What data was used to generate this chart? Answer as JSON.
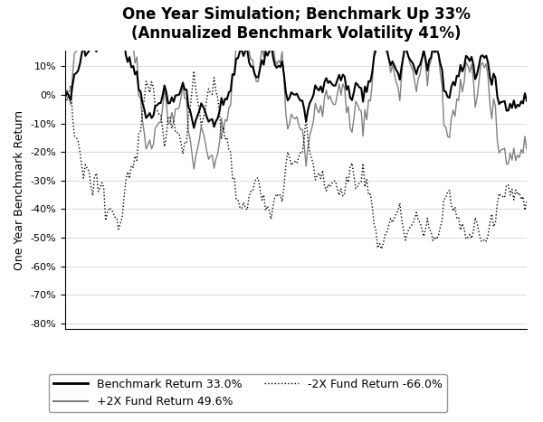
{
  "title_line1": "One Year Simulation; Benchmark Up 33%",
  "title_line2": "(Annualized Benchmark Volatility 41%)",
  "ylabel": "One Year Benchmark Return",
  "ylim": [
    -0.82,
    0.155
  ],
  "yticks": [
    -0.8,
    -0.7,
    -0.6,
    -0.5,
    -0.4,
    -0.3,
    -0.2,
    -0.1,
    0.0,
    0.1,
    0.2,
    0.3,
    0.4,
    0.5,
    0.6,
    0.7,
    0.8,
    0.9,
    1.0,
    1.1,
    1.2,
    1.3,
    1.4
  ],
  "benchmark_color": "#000000",
  "fund2x_color": "#808080",
  "fundm2x_color": "#000000",
  "background_color": "#ffffff",
  "legend_labels": [
    "Benchmark Return 33.0%",
    "+2X Fund Return 49.6%",
    "-2X Fund Return -66.0%"
  ],
  "n_steps": 252,
  "annual_return": 0.33,
  "annual_vol": 0.41,
  "title_fontsize": 12,
  "label_fontsize": 9,
  "tick_fontsize": 8
}
